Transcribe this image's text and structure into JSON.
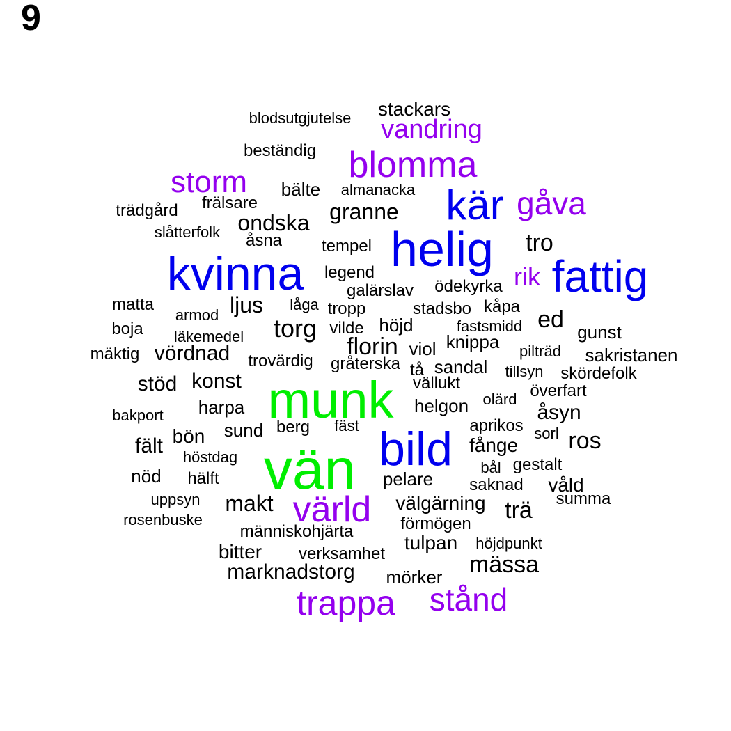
{
  "panel_label": "9",
  "palette": {
    "green": "#00ee00",
    "blue": "#0000ee",
    "purple": "#9400ee",
    "black": "#000000"
  },
  "words": [
    {
      "text": "vän",
      "color": "green"
    },
    {
      "text": "munk",
      "color": "green"
    },
    {
      "text": "bild",
      "color": "blue"
    },
    {
      "text": "kvinna",
      "color": "blue"
    },
    {
      "text": "helig",
      "color": "blue"
    },
    {
      "text": "fattig",
      "color": "blue"
    },
    {
      "text": "kär",
      "color": "blue"
    },
    {
      "text": "blomma",
      "color": "purple"
    },
    {
      "text": "värld",
      "color": "purple"
    },
    {
      "text": "trappa",
      "color": "purple"
    },
    {
      "text": "stånd",
      "color": "purple"
    },
    {
      "text": "gåva",
      "color": "purple"
    },
    {
      "text": "storm",
      "color": "purple"
    },
    {
      "text": "vandring",
      "color": "purple"
    },
    {
      "text": "rik",
      "color": "purple"
    },
    {
      "text": "stackars",
      "color": "black"
    },
    {
      "text": "blodsutgjutelse",
      "color": "black"
    },
    {
      "text": "beständig",
      "color": "black"
    },
    {
      "text": "bälte",
      "color": "black"
    },
    {
      "text": "almanacka",
      "color": "black"
    },
    {
      "text": "frälsare",
      "color": "black"
    },
    {
      "text": "trädgård",
      "color": "black"
    },
    {
      "text": "granne",
      "color": "black"
    },
    {
      "text": "ondska",
      "color": "black"
    },
    {
      "text": "slåtterfolk",
      "color": "black"
    },
    {
      "text": "åsna",
      "color": "black"
    },
    {
      "text": "tempel",
      "color": "black"
    },
    {
      "text": "tro",
      "color": "black"
    },
    {
      "text": "legend",
      "color": "black"
    },
    {
      "text": "galärslav",
      "color": "black"
    },
    {
      "text": "ödekyrka",
      "color": "black"
    },
    {
      "text": "matta",
      "color": "black"
    },
    {
      "text": "armod",
      "color": "black"
    },
    {
      "text": "ljus",
      "color": "black"
    },
    {
      "text": "låga",
      "color": "black"
    },
    {
      "text": "tropp",
      "color": "black"
    },
    {
      "text": "stadsbo",
      "color": "black"
    },
    {
      "text": "kåpa",
      "color": "black"
    },
    {
      "text": "ed",
      "color": "black"
    },
    {
      "text": "boja",
      "color": "black"
    },
    {
      "text": "läkemedel",
      "color": "black"
    },
    {
      "text": "torg",
      "color": "black"
    },
    {
      "text": "vilde",
      "color": "black"
    },
    {
      "text": "höjd",
      "color": "black"
    },
    {
      "text": "fastsmidd",
      "color": "black"
    },
    {
      "text": "gunst",
      "color": "black"
    },
    {
      "text": "mäktig",
      "color": "black"
    },
    {
      "text": "vördnad",
      "color": "black"
    },
    {
      "text": "florin",
      "color": "black"
    },
    {
      "text": "viol",
      "color": "black"
    },
    {
      "text": "knippa",
      "color": "black"
    },
    {
      "text": "pilträd",
      "color": "black"
    },
    {
      "text": "sakristanen",
      "color": "black"
    },
    {
      "text": "trovärdig",
      "color": "black"
    },
    {
      "text": "gråterska",
      "color": "black"
    },
    {
      "text": "tå",
      "color": "black"
    },
    {
      "text": "sandal",
      "color": "black"
    },
    {
      "text": "tillsyn",
      "color": "black"
    },
    {
      "text": "skördefolk",
      "color": "black"
    },
    {
      "text": "stöd",
      "color": "black"
    },
    {
      "text": "konst",
      "color": "black"
    },
    {
      "text": "vällukt",
      "color": "black"
    },
    {
      "text": "överfart",
      "color": "black"
    },
    {
      "text": "olärd",
      "color": "black"
    },
    {
      "text": "harpa",
      "color": "black"
    },
    {
      "text": "helgon",
      "color": "black"
    },
    {
      "text": "åsyn",
      "color": "black"
    },
    {
      "text": "bakport",
      "color": "black"
    },
    {
      "text": "sund",
      "color": "black"
    },
    {
      "text": "berg",
      "color": "black"
    },
    {
      "text": "fäst",
      "color": "black"
    },
    {
      "text": "aprikos",
      "color": "black"
    },
    {
      "text": "sorl",
      "color": "black"
    },
    {
      "text": "ros",
      "color": "black"
    },
    {
      "text": "bön",
      "color": "black"
    },
    {
      "text": "fält",
      "color": "black"
    },
    {
      "text": "fånge",
      "color": "black"
    },
    {
      "text": "höstdag",
      "color": "black"
    },
    {
      "text": "bål",
      "color": "black"
    },
    {
      "text": "gestalt",
      "color": "black"
    },
    {
      "text": "nöd",
      "color": "black"
    },
    {
      "text": "hälft",
      "color": "black"
    },
    {
      "text": "pelare",
      "color": "black"
    },
    {
      "text": "saknad",
      "color": "black"
    },
    {
      "text": "våld",
      "color": "black"
    },
    {
      "text": "uppsyn",
      "color": "black"
    },
    {
      "text": "makt",
      "color": "black"
    },
    {
      "text": "summa",
      "color": "black"
    },
    {
      "text": "välgärning",
      "color": "black"
    },
    {
      "text": "trä",
      "color": "black"
    },
    {
      "text": "rosenbuske",
      "color": "black"
    },
    {
      "text": "förmögen",
      "color": "black"
    },
    {
      "text": "människohjärta",
      "color": "black"
    },
    {
      "text": "tulpan",
      "color": "black"
    },
    {
      "text": "höjdpunkt",
      "color": "black"
    },
    {
      "text": "bitter",
      "color": "black"
    },
    {
      "text": "verksamhet",
      "color": "black"
    },
    {
      "text": "mässa",
      "color": "black"
    },
    {
      "text": "marknadstorg",
      "color": "black"
    },
    {
      "text": "mörker",
      "color": "black"
    }
  ]
}
